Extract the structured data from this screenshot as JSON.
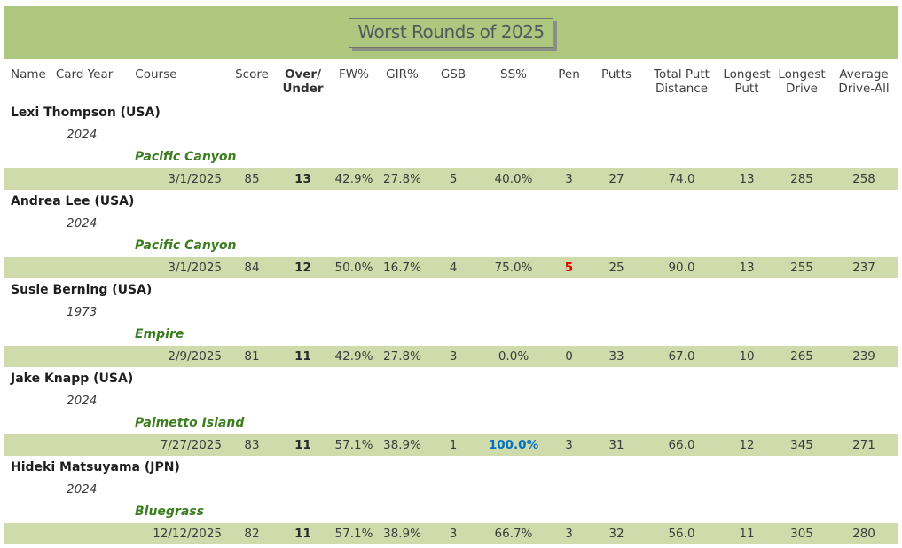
{
  "title": "Worst Rounds of 2025",
  "colors": {
    "banner_green": "#adc87e",
    "row_band_green": "#cfdbab",
    "course_green": "#3b7d1f",
    "pen_alert_red": "#e00000",
    "ss_best_blue": "#0070c4"
  },
  "columns": {
    "name": "Name",
    "card_year": "Card Year",
    "course": "Course",
    "stats": [
      {
        "key": "score",
        "label": "Score",
        "bold": false
      },
      {
        "key": "over_under",
        "label": "Over/\nUnder",
        "bold": true
      },
      {
        "key": "fw",
        "label": "FW%",
        "bold": false
      },
      {
        "key": "gir",
        "label": "GIR%",
        "bold": false
      },
      {
        "key": "gsb",
        "label": "GSB",
        "bold": false
      },
      {
        "key": "ss",
        "label": "SS%",
        "bold": false
      },
      {
        "key": "pen",
        "label": "Pen",
        "bold": false
      },
      {
        "key": "putts",
        "label": "Putts",
        "bold": false
      },
      {
        "key": "total_putt_distance",
        "label": "Total Putt\nDistance",
        "bold": false
      },
      {
        "key": "longest_putt",
        "label": "Longest\nPutt",
        "bold": false
      },
      {
        "key": "longest_drive",
        "label": "Longest\nDrive",
        "bold": false
      },
      {
        "key": "avg_drive_all",
        "label": "Average\nDrive-All",
        "bold": false
      }
    ]
  },
  "players": [
    {
      "name": "Lexi Thompson (USA)",
      "card_year": "2024",
      "course": "Pacific Canyon",
      "round": {
        "date": "3/1/2025",
        "score": "85",
        "over_under": "13",
        "fw": "42.9%",
        "gir": "27.8%",
        "gsb": "5",
        "ss": "40.0%",
        "pen": "3",
        "putts": "27",
        "total_putt_distance": "74.0",
        "longest_putt": "13",
        "longest_drive": "285",
        "avg_drive_all": "258",
        "pen_highlight": false,
        "ss_highlight": false
      }
    },
    {
      "name": "Andrea Lee (USA)",
      "card_year": "2024",
      "course": "Pacific Canyon",
      "round": {
        "date": "3/1/2025",
        "score": "84",
        "over_under": "12",
        "fw": "50.0%",
        "gir": "16.7%",
        "gsb": "4",
        "ss": "75.0%",
        "pen": "5",
        "putts": "25",
        "total_putt_distance": "90.0",
        "longest_putt": "13",
        "longest_drive": "255",
        "avg_drive_all": "237",
        "pen_highlight": true,
        "ss_highlight": false
      }
    },
    {
      "name": "Susie Berning (USA)",
      "card_year": "1973",
      "course": "Empire",
      "round": {
        "date": "2/9/2025",
        "score": "81",
        "over_under": "11",
        "fw": "42.9%",
        "gir": "27.8%",
        "gsb": "3",
        "ss": "0.0%",
        "pen": "0",
        "putts": "33",
        "total_putt_distance": "67.0",
        "longest_putt": "10",
        "longest_drive": "265",
        "avg_drive_all": "239",
        "pen_highlight": false,
        "ss_highlight": false
      }
    },
    {
      "name": "Jake Knapp (USA)",
      "card_year": "2024",
      "course": "Palmetto Island",
      "round": {
        "date": "7/27/2025",
        "score": "83",
        "over_under": "11",
        "fw": "57.1%",
        "gir": "38.9%",
        "gsb": "1",
        "ss": "100.0%",
        "pen": "3",
        "putts": "31",
        "total_putt_distance": "66.0",
        "longest_putt": "12",
        "longest_drive": "345",
        "avg_drive_all": "271",
        "pen_highlight": false,
        "ss_highlight": true
      }
    },
    {
      "name": "Hideki Matsuyama (JPN)",
      "card_year": "2024",
      "course": "Bluegrass",
      "round": {
        "date": "12/12/2025",
        "score": "82",
        "over_under": "11",
        "fw": "57.1%",
        "gir": "38.9%",
        "gsb": "3",
        "ss": "66.7%",
        "pen": "3",
        "putts": "32",
        "total_putt_distance": "56.0",
        "longest_putt": "11",
        "longest_drive": "305",
        "avg_drive_all": "280",
        "pen_highlight": false,
        "ss_highlight": false
      }
    }
  ]
}
